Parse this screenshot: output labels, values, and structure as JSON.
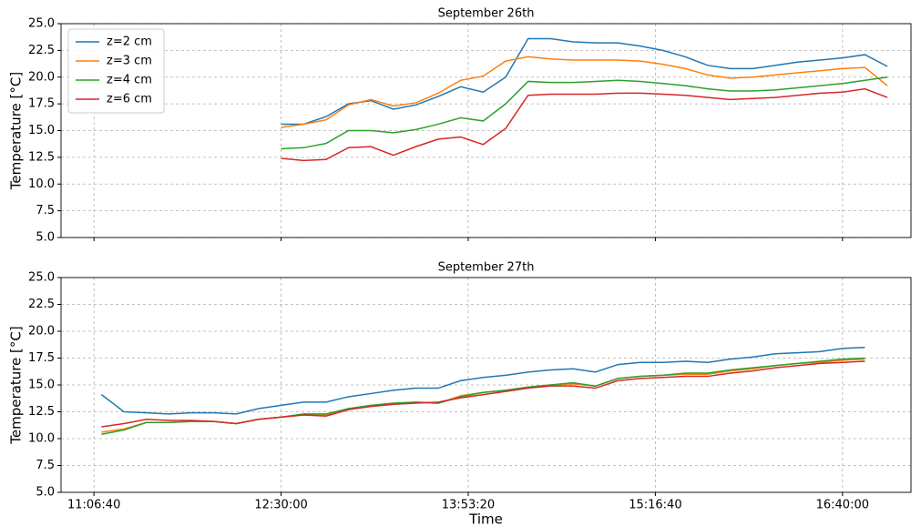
{
  "chart_data": [
    {
      "type": "line",
      "title": "September 26th",
      "ylabel": "Temperature [°C]",
      "x": [
        45000,
        45600,
        46200,
        46800,
        47400,
        48000,
        48600,
        49200,
        49800,
        50400,
        51000,
        51600,
        52200,
        52800,
        53400,
        54000,
        54600,
        55200,
        55800,
        56400,
        57000,
        57600,
        58200,
        58800,
        59400,
        60000,
        60600,
        61200
      ],
      "xlim": [
        39120,
        61830
      ],
      "xticks": [
        40000,
        45000,
        50000,
        55000,
        60000
      ],
      "ylim": [
        5,
        25
      ],
      "yticks": [
        {
          "value": 5,
          "label": "5.0"
        },
        {
          "value": 7.5,
          "label": "7.5"
        },
        {
          "value": 10,
          "label": "10.0"
        },
        {
          "value": 12.5,
          "label": "12.5"
        },
        {
          "value": 15,
          "label": "15.0"
        },
        {
          "value": 17.5,
          "label": "17.5"
        },
        {
          "value": 20,
          "label": "20.0"
        },
        {
          "value": 22.5,
          "label": "22.5"
        },
        {
          "value": 25,
          "label": "25.0"
        }
      ],
      "grid": true,
      "legend": "upper left",
      "series": [
        {
          "name": "z=2 cm",
          "color": "#1f77b4",
          "values": [
            15.6,
            15.6,
            16.3,
            17.5,
            17.8,
            17.0,
            17.4,
            18.2,
            19.1,
            18.6,
            20.0,
            23.6,
            23.6,
            23.3,
            23.2,
            23.2,
            22.9,
            22.5,
            21.9,
            21.1,
            20.8,
            20.8,
            21.1,
            21.4,
            21.6,
            21.8,
            22.1,
            21.0
          ]
        },
        {
          "name": "z=3 cm",
          "color": "#ff7f0e",
          "values": [
            15.3,
            15.6,
            16.0,
            17.4,
            17.9,
            17.3,
            17.6,
            18.5,
            19.7,
            20.1,
            21.5,
            21.9,
            21.7,
            21.6,
            21.6,
            21.6,
            21.5,
            21.2,
            20.8,
            20.2,
            19.9,
            20.0,
            20.2,
            20.4,
            20.6,
            20.8,
            20.9,
            19.2
          ]
        },
        {
          "name": "z=4 cm",
          "color": "#2ca02c",
          "values": [
            13.3,
            13.4,
            13.8,
            15.0,
            15.0,
            14.8,
            15.1,
            15.6,
            16.2,
            15.9,
            17.5,
            19.6,
            19.5,
            19.5,
            19.6,
            19.7,
            19.6,
            19.4,
            19.2,
            18.9,
            18.7,
            18.7,
            18.8,
            19.0,
            19.2,
            19.4,
            19.7,
            20.0
          ]
        },
        {
          "name": "z=6 cm",
          "color": "#d62728",
          "values": [
            12.4,
            12.2,
            12.3,
            13.4,
            13.5,
            12.7,
            13.5,
            14.2,
            14.4,
            13.7,
            15.2,
            18.3,
            18.4,
            18.4,
            18.4,
            18.5,
            18.5,
            18.4,
            18.3,
            18.1,
            17.9,
            18.0,
            18.1,
            18.3,
            18.5,
            18.6,
            18.9,
            18.1
          ]
        }
      ]
    },
    {
      "type": "line",
      "title": "September 27th",
      "ylabel": "Temperature [°C]",
      "xlabel": "Time",
      "x": [
        40200,
        40800,
        41400,
        42000,
        42600,
        43200,
        43800,
        44400,
        45000,
        45600,
        46200,
        46800,
        47400,
        48000,
        48600,
        49200,
        49800,
        50400,
        51000,
        51600,
        52200,
        52800,
        53400,
        54000,
        54600,
        55200,
        55800,
        56400,
        57000,
        57600,
        58200,
        58800,
        59400,
        60000,
        60600
      ],
      "xlim": [
        39120,
        61830
      ],
      "xticks": [
        {
          "value": 40000,
          "label": "11:06:40"
        },
        {
          "value": 45000,
          "label": "12:30:00"
        },
        {
          "value": 50000,
          "label": "13:53:20"
        },
        {
          "value": 55000,
          "label": "15:16:40"
        },
        {
          "value": 60000,
          "label": "16:40:00"
        }
      ],
      "ylim": [
        5,
        25
      ],
      "yticks": [
        {
          "value": 5,
          "label": "5.0"
        },
        {
          "value": 7.5,
          "label": "7.5"
        },
        {
          "value": 10,
          "label": "10.0"
        },
        {
          "value": 12.5,
          "label": "12.5"
        },
        {
          "value": 15,
          "label": "15.0"
        },
        {
          "value": 17.5,
          "label": "17.5"
        },
        {
          "value": 20,
          "label": "20.0"
        },
        {
          "value": 22.5,
          "label": "22.5"
        },
        {
          "value": 25,
          "label": "25.0"
        }
      ],
      "grid": true,
      "series": [
        {
          "color": "#1f77b4",
          "values": [
            14.1,
            12.5,
            12.4,
            12.3,
            12.4,
            12.4,
            12.3,
            12.8,
            13.1,
            13.4,
            13.4,
            13.9,
            14.2,
            14.5,
            14.7,
            14.7,
            15.4,
            15.7,
            15.9,
            16.2,
            16.4,
            16.5,
            16.2,
            16.9,
            17.1,
            17.1,
            17.2,
            17.1,
            17.4,
            17.6,
            17.9,
            18.0,
            18.1,
            18.4,
            18.5
          ]
        },
        {
          "color": "#ff7f0e",
          "values": [
            10.6,
            10.9,
            11.5,
            11.5,
            11.6,
            11.6,
            11.4,
            11.8,
            12.0,
            12.2,
            12.2,
            12.8,
            13.0,
            13.2,
            13.4,
            13.3,
            14.0,
            14.3,
            14.5,
            14.8,
            15.0,
            15.1,
            14.9,
            15.6,
            15.8,
            15.9,
            16.0,
            16.0,
            16.3,
            16.5,
            16.8,
            17.0,
            17.1,
            17.3,
            17.4
          ]
        },
        {
          "color": "#2ca02c",
          "values": [
            10.4,
            10.8,
            11.5,
            11.5,
            11.6,
            11.6,
            11.4,
            11.8,
            12.0,
            12.3,
            12.3,
            12.8,
            13.1,
            13.3,
            13.4,
            13.3,
            13.9,
            14.3,
            14.5,
            14.8,
            15.0,
            15.2,
            14.9,
            15.6,
            15.8,
            15.9,
            16.1,
            16.1,
            16.4,
            16.6,
            16.8,
            17.0,
            17.2,
            17.4,
            17.5
          ]
        },
        {
          "color": "#d62728",
          "values": [
            11.1,
            11.4,
            11.8,
            11.7,
            11.7,
            11.6,
            11.4,
            11.8,
            12.0,
            12.2,
            12.1,
            12.7,
            13.0,
            13.2,
            13.3,
            13.4,
            13.8,
            14.1,
            14.4,
            14.7,
            14.9,
            14.9,
            14.7,
            15.4,
            15.6,
            15.7,
            15.8,
            15.8,
            16.1,
            16.3,
            16.6,
            16.8,
            17.0,
            17.1,
            17.2
          ]
        }
      ]
    }
  ]
}
